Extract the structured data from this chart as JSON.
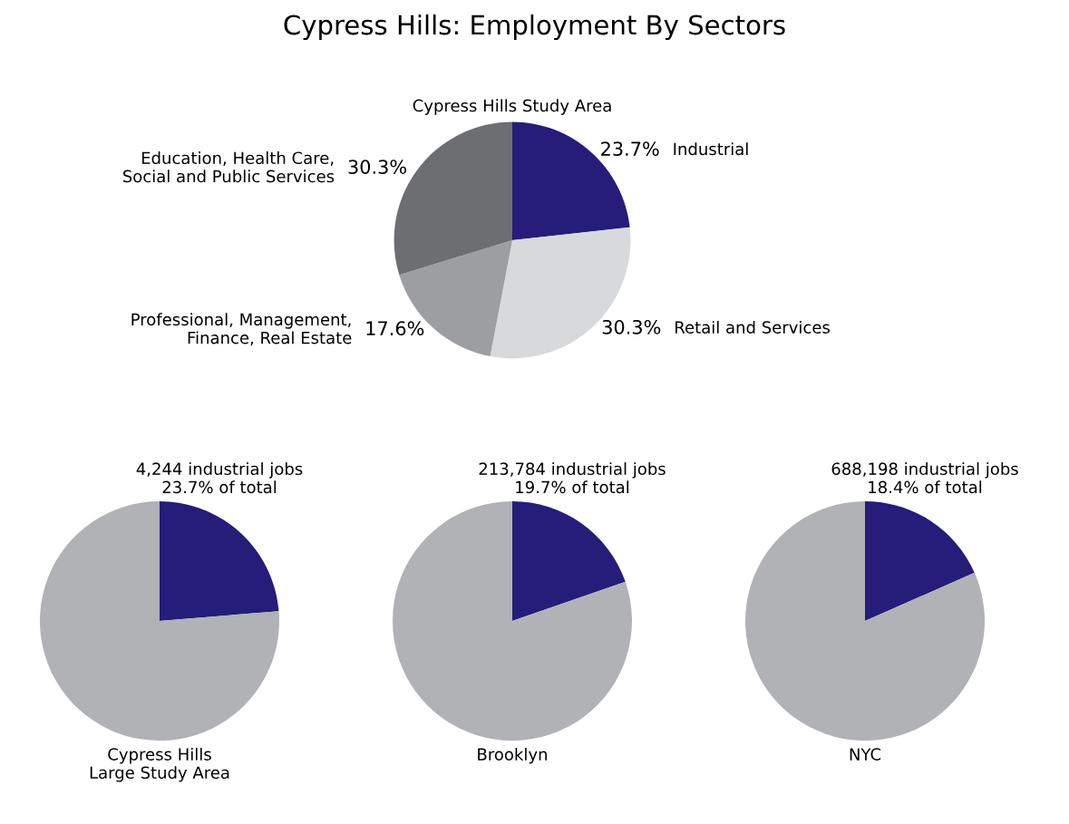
{
  "chart_data": [
    {
      "type": "pie",
      "title": "Cypress Hills: Employment By Sectors",
      "subtitle": "Cypress Hills Study Area",
      "categories": [
        "Industrial",
        "Retail and Services",
        "Professional, Management,\nFinance, Real Estate",
        "Education, Health Care,\nSocial and Public Services"
      ],
      "values": [
        23.7,
        30.3,
        17.6,
        30.3
      ],
      "colors": [
        "#261c7a",
        "#d8d9db",
        "#9d9ea2",
        "#6d6e72"
      ],
      "value_labels": [
        "23.7%",
        "30.3%",
        "17.6%",
        "30.3%"
      ]
    },
    {
      "type": "pie",
      "title": "Cypress Hills\nLarge Study Area",
      "categories": [
        null,
        null
      ],
      "values": [
        23.7,
        76.3
      ],
      "colors": [
        "#261c7a",
        "#b1b2b6"
      ],
      "annotations": [
        "4,244 industrial jobs\n23.7% of total"
      ]
    },
    {
      "type": "pie",
      "title": "Brooklyn",
      "categories": [
        null,
        null
      ],
      "values": [
        19.7,
        80.3
      ],
      "colors": [
        "#261c7a",
        "#b1b2b6"
      ],
      "annotations": [
        "213,784 industrial jobs\n19.7% of total"
      ]
    },
    {
      "type": "pie",
      "title": "NYC",
      "categories": [
        null,
        null
      ],
      "values": [
        18.4,
        81.6
      ],
      "colors": [
        "#261c7a",
        "#b1b2b6"
      ],
      "annotations": [
        "688,198 industrial jobs\n18.4% of total"
      ]
    }
  ]
}
